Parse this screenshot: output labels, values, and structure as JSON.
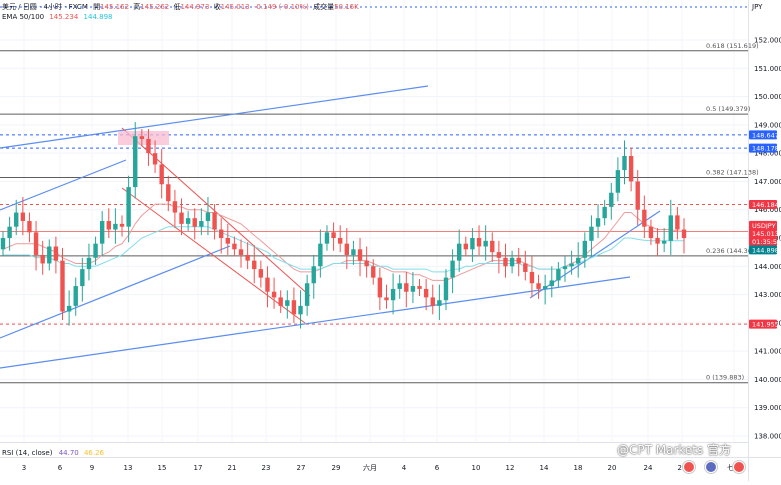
{
  "header": {
    "symbol_line": "美元 / 日圆 · 4小时 · FXCM",
    "open_label": "開",
    "open": "145.162",
    "high_label": "高",
    "high": "145.262",
    "low_label": "低",
    "low": "144.973",
    "close_label": "收",
    "close": "145.013",
    "change": "-0.149 (-0.10%)",
    "volume_label": "成交量",
    "volume": "50.16K",
    "ema_label": "EMA 50/100",
    "ema50": "145.234",
    "ema100": "144.898",
    "currency": "JPY"
  },
  "rsi": {
    "label": "RSI (14, close)",
    "v1": "44.70",
    "v2": "46.26"
  },
  "watermark": "@CPT Markets 官方",
  "colors": {
    "up": "#26a69a",
    "down": "#ef5350",
    "ema50": "#ef9a9a",
    "ema100": "#80deea",
    "fib": "#5d5d5d",
    "blue_line": "#5b8def",
    "channel": "#ef5350",
    "price_tag": "#f23645",
    "level_blue": "#2962ff"
  },
  "chart_data": {
    "type": "candlestick",
    "ylim": [
      137.9,
      152.3
    ],
    "y_ticks": [
      "152.000",
      "151.000",
      "150.000",
      "149.000",
      "148.000",
      "147.000",
      "146.000",
      "145.000",
      "144.000",
      "143.000",
      "142.000",
      "141.000",
      "140.000",
      "139.000",
      "138.000"
    ],
    "x_ticks": [
      "3",
      "6",
      "9",
      "13",
      "15",
      "17",
      "21",
      "23",
      "27",
      "29",
      "六月",
      "4",
      "6",
      "10",
      "12",
      "14",
      "18",
      "20",
      "24",
      "26",
      "七月"
    ],
    "fib_levels": [
      {
        "label": "0.618 (151.619)",
        "price": 151.619
      },
      {
        "label": "0.5 (149.379)",
        "price": 149.379
      },
      {
        "label": "0.382 (147.138)",
        "price": 147.138
      },
      {
        "label": "0.236 (144.369)",
        "price": 144.369
      },
      {
        "label": "0 (139.883)",
        "price": 139.883
      }
    ],
    "price_tags": [
      {
        "label": "JPY",
        "value": null
      },
      {
        "label": "148.647",
        "value": 148.647
      },
      {
        "label": "148.178",
        "value": 148.178
      },
      {
        "label": "146.184",
        "value": 146.184
      },
      {
        "label": "USDJPY",
        "value": 145.234
      },
      {
        "label": "145.013",
        "value": 145.013
      },
      {
        "label": "01:35:56",
        "value": null
      },
      {
        "label": "144.898",
        "value": 144.898
      },
      {
        "label": "141.955",
        "value": 141.955
      }
    ],
    "levels": [
      {
        "price": 148.647,
        "style": "blue-dashed"
      },
      {
        "price": 148.178,
        "style": "blue-dashed"
      },
      {
        "price": 146.184,
        "style": "red-dashed"
      },
      {
        "price": 141.955,
        "style": "red-dashed"
      },
      {
        "price": 145.234,
        "style": "red-solid"
      }
    ],
    "closes": [
      145.0,
      145.4,
      145.9,
      145.6,
      145.2,
      144.4,
      144.1,
      144.7,
      144.2,
      142.4,
      142.6,
      143.3,
      143.9,
      144.3,
      144.8,
      145.6,
      145.3,
      145.5,
      145.4,
      146.8,
      148.6,
      148.5,
      148.0,
      147.6,
      146.9,
      146.3,
      145.9,
      145.5,
      145.7,
      145.4,
      145.6,
      145.9,
      145.3,
      145.0,
      144.8,
      144.6,
      144.4,
      144.2,
      143.9,
      143.6,
      143.1,
      142.9,
      142.6,
      142.8,
      142.3,
      142.6,
      143.4,
      144.0,
      144.8,
      145.2,
      145.0,
      144.8,
      144.4,
      144.6,
      144.2,
      144.0,
      143.6,
      142.9,
      142.8,
      143.2,
      143.4,
      143.1,
      143.3,
      143.2,
      142.9,
      142.6,
      142.8,
      143.6,
      144.2,
      144.8,
      144.6,
      145.0,
      144.7,
      144.9,
      144.5,
      144.3,
      144.0,
      144.3,
      144.1,
      143.8,
      143.4,
      143.2,
      143.3,
      143.5,
      143.9,
      144.0,
      144.1,
      144.3,
      144.9,
      145.4,
      145.7,
      146.1,
      146.6,
      147.4,
      147.9,
      147.0,
      146.0,
      145.4,
      145.0,
      144.8,
      144.9,
      145.8,
      145.3,
      145.0
    ],
    "ema50": [
      144.6,
      144.7,
      144.8,
      144.8,
      144.8,
      144.8,
      144.7,
      144.6,
      144.5,
      144.3,
      144.2,
      144.1,
      144.1,
      144.1,
      144.2,
      144.4,
      144.5,
      144.7,
      144.8,
      145.1,
      145.5,
      145.8,
      146.0,
      146.2,
      146.2,
      146.2,
      146.1,
      146.1,
      146.0,
      146.0,
      146.0,
      145.9,
      145.9,
      145.8,
      145.7,
      145.6,
      145.5,
      145.3,
      145.1,
      144.9,
      144.7,
      144.5,
      144.3,
      144.1,
      143.9,
      143.8,
      143.8,
      143.8,
      143.9,
      144.0,
      144.1,
      144.1,
      144.2,
      144.2,
      144.2,
      144.2,
      144.1,
      144.0,
      143.9,
      143.8,
      143.8,
      143.8,
      143.7,
      143.7,
      143.6,
      143.5,
      143.5,
      143.5,
      143.6,
      143.7,
      143.8,
      143.9,
      144.0,
      144.1,
      144.2,
      144.2,
      144.2,
      144.2,
      144.2,
      144.1,
      144.0,
      143.9,
      143.9,
      143.9,
      143.9,
      144.0,
      144.1,
      144.2,
      144.4,
      144.6,
      144.8,
      145.0,
      145.3,
      145.6,
      145.9,
      145.9,
      145.7,
      145.5,
      145.4,
      145.3,
      145.3,
      145.3,
      145.25,
      145.23
    ],
    "ema100": [
      144.4,
      144.4,
      144.4,
      144.4,
      144.4,
      144.3,
      144.3,
      144.3,
      144.2,
      144.1,
      144.1,
      144.0,
      144.0,
      144.0,
      144.0,
      144.1,
      144.2,
      144.3,
      144.4,
      144.6,
      144.8,
      145.0,
      145.1,
      145.2,
      145.3,
      145.4,
      145.4,
      145.4,
      145.4,
      145.4,
      145.4,
      145.4,
      145.3,
      145.2,
      145.1,
      145.0,
      144.9,
      144.8,
      144.7,
      144.6,
      144.5,
      144.3,
      144.2,
      144.1,
      144.0,
      143.9,
      143.9,
      143.9,
      143.9,
      144.0,
      144.1,
      144.1,
      144.1,
      144.1,
      144.1,
      144.1,
      144.0,
      144.0,
      144.0,
      143.9,
      143.9,
      143.9,
      143.9,
      143.9,
      143.9,
      143.8,
      143.8,
      143.8,
      143.9,
      143.9,
      144.0,
      144.0,
      144.1,
      144.1,
      144.1,
      144.1,
      144.1,
      144.1,
      144.1,
      144.0,
      144.0,
      143.9,
      143.9,
      143.9,
      143.9,
      144.0,
      144.0,
      144.1,
      144.2,
      144.3,
      144.4,
      144.5,
      144.6,
      144.8,
      145.0,
      145.0,
      144.95,
      144.92,
      144.9,
      144.9,
      144.9,
      144.9,
      144.9,
      144.9
    ]
  }
}
